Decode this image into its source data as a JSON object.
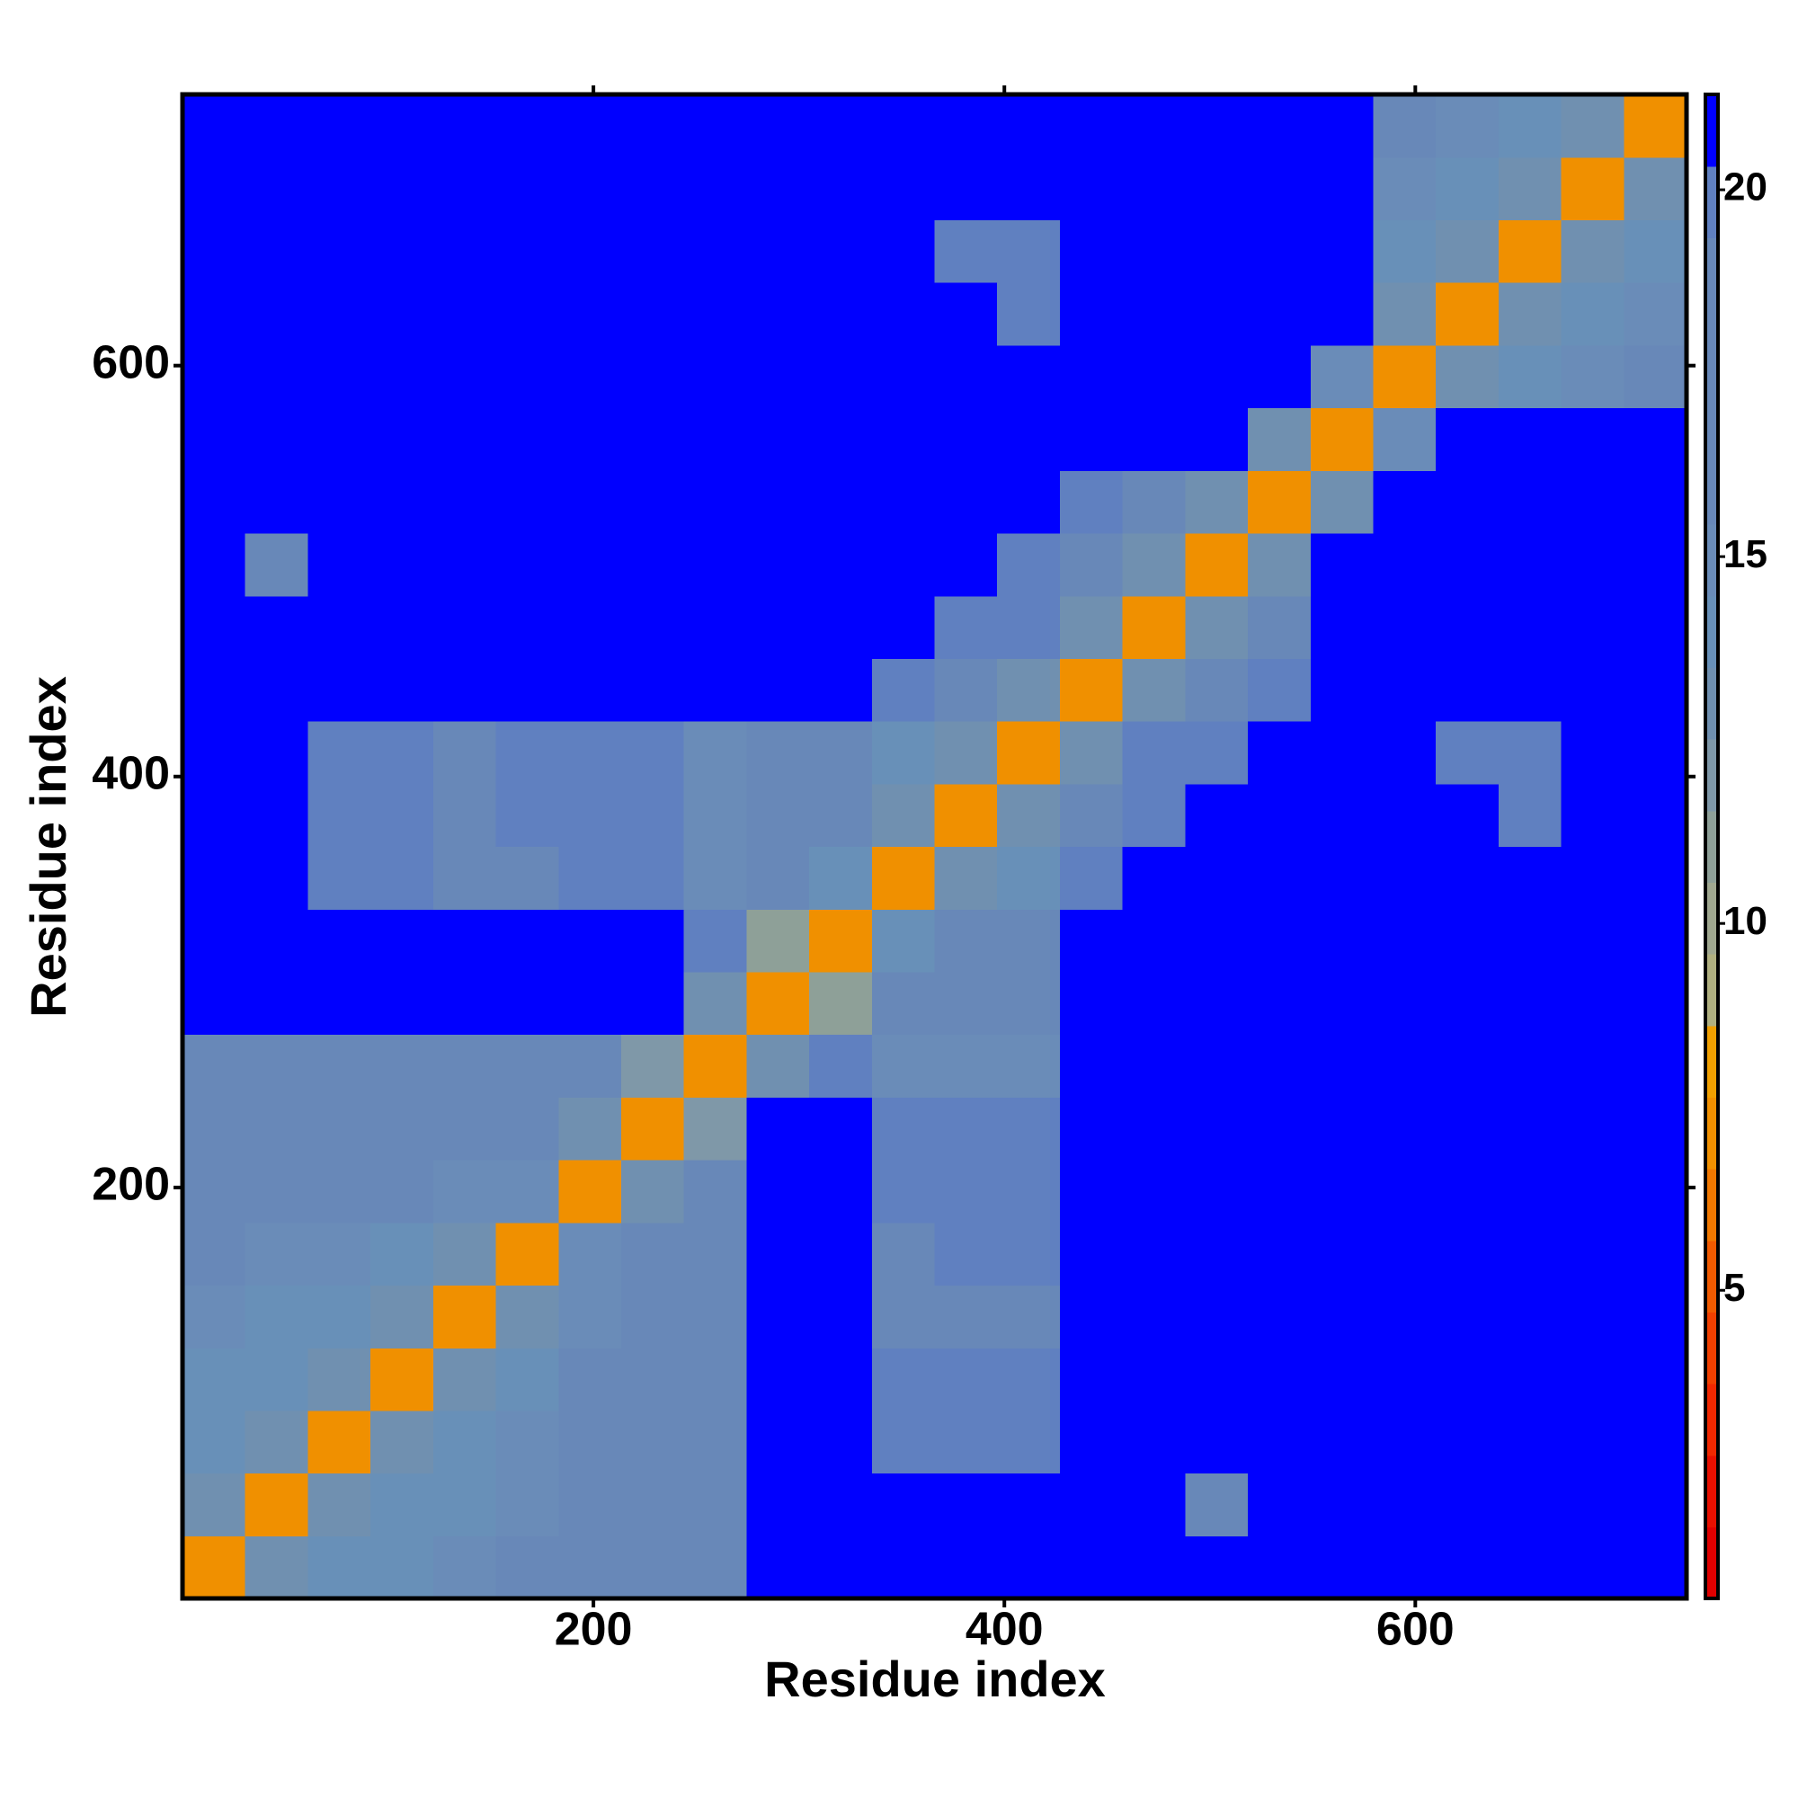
{
  "chart_data": {
    "type": "heatmap",
    "x_label": "Residue index",
    "y_label": "Residue index",
    "xlim": [
      0,
      732
    ],
    "ylim": [
      0,
      732
    ],
    "xticks": [
      200,
      400,
      600
    ],
    "yticks": [
      200,
      400,
      600
    ],
    "clim": [
      0.8,
      21.3
    ],
    "cticks": [
      5,
      10,
      15,
      20
    ],
    "colors": [
      "#e00000",
      "#e81000",
      "#f02800",
      "#f04000",
      "#f05a00",
      "#f07800",
      "#f09000",
      "#f0a000",
      "#b0b080",
      "#a0a890",
      "#8ea098",
      "#7f98a8",
      "#7090b0",
      "#6890b8",
      "#6a8cb8",
      "#6888b8",
      "#6888b8",
      "#6888b8",
      "#6888b8",
      "#6080c0",
      "#0000ff"
    ],
    "z": [
      [
        7,
        13,
        14,
        14,
        15,
        16,
        16,
        16,
        17,
        21,
        21,
        21,
        21,
        21,
        21,
        21,
        21,
        21,
        21,
        21,
        21,
        21,
        21,
        21
      ],
      [
        13,
        7,
        13,
        14,
        14,
        15,
        16,
        16,
        17,
        21,
        21,
        21,
        21,
        21,
        21,
        21,
        18,
        21,
        21,
        21,
        21,
        21,
        21,
        21
      ],
      [
        14,
        13,
        7,
        13,
        14,
        15,
        16,
        17,
        18,
        21,
        21,
        20,
        20,
        20,
        21,
        21,
        21,
        21,
        21,
        21,
        21,
        21,
        21,
        21
      ],
      [
        14,
        14,
        13,
        7,
        13,
        14,
        16,
        17,
        18,
        21,
        21,
        20,
        20,
        20,
        21,
        21,
        21,
        21,
        21,
        21,
        21,
        21,
        21,
        21
      ],
      [
        15,
        14,
        14,
        13,
        7,
        13,
        15,
        16,
        18,
        21,
        21,
        19,
        19,
        19,
        21,
        21,
        21,
        21,
        21,
        21,
        21,
        21,
        21,
        21
      ],
      [
        16,
        15,
        15,
        14,
        13,
        7,
        15,
        16,
        18,
        21,
        21,
        19,
        20,
        20,
        21,
        21,
        21,
        21,
        21,
        21,
        21,
        21,
        21,
        21
      ],
      [
        16,
        16,
        16,
        16,
        15,
        15,
        7,
        13,
        17,
        21,
        21,
        20,
        20,
        20,
        21,
        21,
        21,
        21,
        21,
        21,
        21,
        21,
        21,
        21
      ],
      [
        16,
        16,
        17,
        17,
        16,
        16,
        13,
        7,
        12,
        21,
        21,
        20,
        20,
        20,
        21,
        21,
        21,
        21,
        21,
        21,
        21,
        21,
        21,
        21
      ],
      [
        17,
        17,
        18,
        18,
        18,
        18,
        17,
        12,
        7,
        13,
        20,
        15,
        15,
        15,
        21,
        21,
        21,
        21,
        21,
        21,
        21,
        21,
        21,
        21
      ],
      [
        21,
        21,
        21,
        21,
        21,
        21,
        21,
        21,
        13,
        7,
        11,
        19,
        19,
        19,
        21,
        21,
        21,
        21,
        21,
        21,
        21,
        21,
        21,
        21
      ],
      [
        21,
        21,
        21,
        21,
        21,
        21,
        21,
        21,
        20,
        11,
        7,
        14,
        19,
        19,
        21,
        21,
        21,
        21,
        21,
        21,
        21,
        21,
        21,
        21
      ],
      [
        21,
        21,
        20,
        20,
        19,
        19,
        20,
        20,
        15,
        19,
        14,
        7,
        13,
        14,
        20,
        21,
        21,
        21,
        21,
        21,
        21,
        21,
        21,
        21
      ],
      [
        21,
        21,
        20,
        20,
        19,
        20,
        20,
        20,
        15,
        19,
        19,
        13,
        7,
        13,
        19,
        20,
        21,
        21,
        21,
        21,
        21,
        20,
        21,
        21
      ],
      [
        21,
        21,
        20,
        20,
        19,
        20,
        20,
        20,
        15,
        19,
        19,
        14,
        13,
        7,
        13,
        20,
        20,
        21,
        21,
        21,
        20,
        20,
        21,
        21
      ],
      [
        21,
        21,
        21,
        21,
        21,
        21,
        21,
        21,
        21,
        21,
        21,
        20,
        19,
        13,
        7,
        13,
        18,
        20,
        21,
        21,
        21,
        21,
        21,
        21
      ],
      [
        21,
        21,
        21,
        21,
        21,
        21,
        21,
        21,
        21,
        21,
        21,
        21,
        20,
        20,
        13,
        7,
        13,
        17,
        21,
        21,
        21,
        21,
        21,
        21
      ],
      [
        21,
        18,
        21,
        21,
        21,
        21,
        21,
        21,
        21,
        21,
        21,
        21,
        21,
        20,
        18,
        13,
        7,
        13,
        21,
        21,
        21,
        21,
        21,
        21
      ],
      [
        21,
        21,
        21,
        21,
        21,
        21,
        21,
        21,
        21,
        21,
        21,
        21,
        21,
        21,
        20,
        17,
        13,
        7,
        13,
        21,
        21,
        21,
        21,
        21
      ],
      [
        21,
        21,
        21,
        21,
        21,
        21,
        21,
        21,
        21,
        21,
        21,
        21,
        21,
        21,
        21,
        21,
        21,
        13,
        7,
        15,
        21,
        21,
        21,
        21
      ],
      [
        21,
        21,
        21,
        21,
        21,
        21,
        21,
        21,
        21,
        21,
        21,
        21,
        21,
        21,
        21,
        21,
        21,
        21,
        15,
        7,
        13,
        14,
        15,
        16
      ],
      [
        21,
        21,
        21,
        21,
        21,
        21,
        21,
        21,
        21,
        21,
        21,
        21,
        21,
        20,
        21,
        21,
        21,
        21,
        21,
        13,
        7,
        13,
        14,
        15
      ],
      [
        21,
        21,
        21,
        21,
        21,
        21,
        21,
        21,
        21,
        21,
        21,
        21,
        20,
        20,
        21,
        21,
        21,
        21,
        21,
        14,
        13,
        7,
        13,
        14
      ],
      [
        21,
        21,
        21,
        21,
        21,
        21,
        21,
        21,
        21,
        21,
        21,
        21,
        21,
        21,
        21,
        21,
        21,
        21,
        21,
        15,
        14,
        13,
        7,
        13
      ],
      [
        21,
        21,
        21,
        21,
        21,
        21,
        21,
        21,
        21,
        21,
        21,
        21,
        21,
        21,
        21,
        21,
        21,
        21,
        21,
        16,
        15,
        14,
        13,
        7
      ]
    ]
  }
}
